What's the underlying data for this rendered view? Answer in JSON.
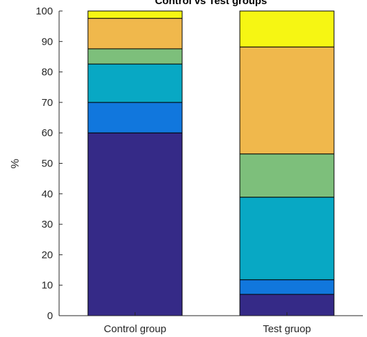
{
  "chart_data": {
    "type": "bar",
    "stacked": true,
    "title": "Control vs Test groups",
    "xlabel": "",
    "ylabel": "%",
    "ylim": [
      0,
      100
    ],
    "yticks": [
      0,
      10,
      20,
      30,
      40,
      50,
      60,
      70,
      80,
      90,
      100
    ],
    "categories": [
      "Control group",
      "Test gruop"
    ],
    "grid": false,
    "legend": "none",
    "series": [
      {
        "color": "#352a87",
        "values": [
          60,
          7
        ]
      },
      {
        "color": "#1177dd",
        "values": [
          10,
          4.8
        ]
      },
      {
        "color": "#08a8c4",
        "values": [
          12.6,
          27.1
        ]
      },
      {
        "color": "#7dbf7b",
        "values": [
          5,
          14.2
        ]
      },
      {
        "color": "#f0b84c",
        "values": [
          10,
          35.1
        ]
      },
      {
        "color": "#f6f613",
        "values": [
          2.4,
          11.8
        ]
      }
    ]
  }
}
